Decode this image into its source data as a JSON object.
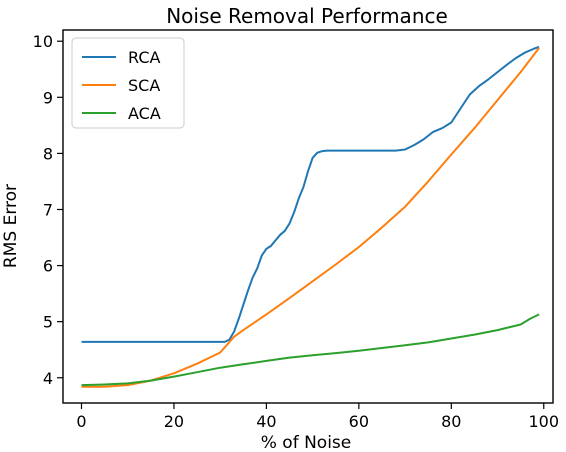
{
  "chart_data": {
    "type": "line",
    "title": "Noise Removal Performance",
    "xlabel": "% of Noise",
    "ylabel": "RMS Error",
    "xlim": [
      -4,
      102
    ],
    "ylim": [
      3.55,
      10.2
    ],
    "xticks": [
      0,
      20,
      40,
      60,
      80,
      100
    ],
    "yticks": [
      4,
      5,
      6,
      7,
      8,
      9,
      10
    ],
    "xtick_labels": [
      "0",
      "20",
      "40",
      "60",
      "80",
      "100"
    ],
    "ytick_labels": [
      "4",
      "5",
      "6",
      "7",
      "8",
      "9",
      "10"
    ],
    "grid": false,
    "legend_position": "top-left",
    "series": [
      {
        "name": "RCA",
        "color": "#1f77b4",
        "points": [
          [
            0,
            4.64
          ],
          [
            10,
            4.64
          ],
          [
            20,
            4.64
          ],
          [
            31,
            4.64
          ],
          [
            32,
            4.68
          ],
          [
            33,
            4.82
          ],
          [
            34,
            5.05
          ],
          [
            35,
            5.3
          ],
          [
            36,
            5.55
          ],
          [
            37,
            5.78
          ],
          [
            38,
            5.95
          ],
          [
            39,
            6.18
          ],
          [
            40,
            6.3
          ],
          [
            41,
            6.35
          ],
          [
            42,
            6.45
          ],
          [
            43,
            6.55
          ],
          [
            44,
            6.62
          ],
          [
            45,
            6.75
          ],
          [
            46,
            6.95
          ],
          [
            47,
            7.2
          ],
          [
            48,
            7.4
          ],
          [
            49,
            7.68
          ],
          [
            50,
            7.92
          ],
          [
            51,
            8.01
          ],
          [
            52,
            8.04
          ],
          [
            53,
            8.05
          ],
          [
            55,
            8.05
          ],
          [
            60,
            8.05
          ],
          [
            65,
            8.05
          ],
          [
            68,
            8.05
          ],
          [
            70,
            8.07
          ],
          [
            72,
            8.15
          ],
          [
            74,
            8.25
          ],
          [
            76,
            8.38
          ],
          [
            78,
            8.45
          ],
          [
            80,
            8.55
          ],
          [
            82,
            8.8
          ],
          [
            84,
            9.05
          ],
          [
            86,
            9.2
          ],
          [
            88,
            9.32
          ],
          [
            90,
            9.45
          ],
          [
            92,
            9.58
          ],
          [
            94,
            9.7
          ],
          [
            96,
            9.8
          ],
          [
            98,
            9.87
          ],
          [
            99,
            9.9
          ]
        ]
      },
      {
        "name": "SCA",
        "color": "#ff7f0e",
        "points": [
          [
            0,
            3.84
          ],
          [
            5,
            3.84
          ],
          [
            10,
            3.87
          ],
          [
            15,
            3.95
          ],
          [
            20,
            4.08
          ],
          [
            25,
            4.25
          ],
          [
            30,
            4.45
          ],
          [
            33,
            4.73
          ],
          [
            35,
            4.85
          ],
          [
            40,
            5.13
          ],
          [
            45,
            5.42
          ],
          [
            50,
            5.72
          ],
          [
            55,
            6.02
          ],
          [
            60,
            6.33
          ],
          [
            65,
            6.68
          ],
          [
            70,
            7.05
          ],
          [
            75,
            7.5
          ],
          [
            80,
            7.98
          ],
          [
            85,
            8.45
          ],
          [
            90,
            8.95
          ],
          [
            95,
            9.45
          ],
          [
            99,
            9.88
          ]
        ]
      },
      {
        "name": "ACA",
        "color": "#2ca02c",
        "points": [
          [
            0,
            3.87
          ],
          [
            5,
            3.88
          ],
          [
            10,
            3.9
          ],
          [
            15,
            3.95
          ],
          [
            20,
            4.02
          ],
          [
            25,
            4.1
          ],
          [
            30,
            4.18
          ],
          [
            35,
            4.24
          ],
          [
            40,
            4.3
          ],
          [
            45,
            4.36
          ],
          [
            50,
            4.4
          ],
          [
            55,
            4.44
          ],
          [
            60,
            4.48
          ],
          [
            65,
            4.53
          ],
          [
            70,
            4.58
          ],
          [
            75,
            4.63
          ],
          [
            80,
            4.7
          ],
          [
            85,
            4.77
          ],
          [
            90,
            4.85
          ],
          [
            95,
            4.95
          ],
          [
            97,
            5.05
          ],
          [
            99,
            5.13
          ]
        ]
      }
    ]
  }
}
